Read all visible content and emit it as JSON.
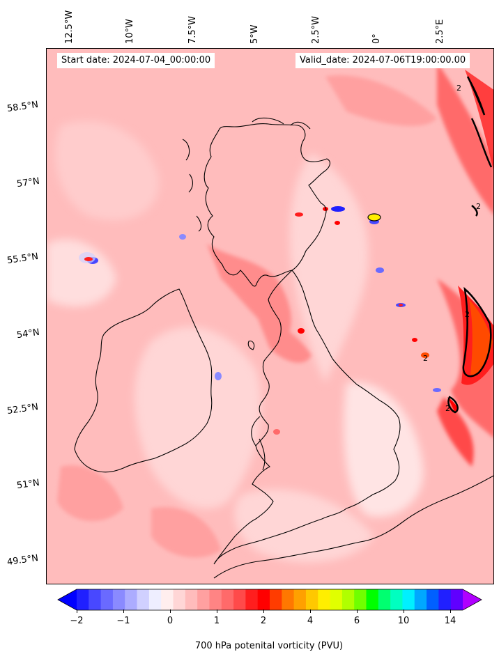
{
  "header": {
    "start_date": "Start date: 2024-07-04_00:00:00",
    "valid_date": "Valid_date: 2024-07-06T19:00:00.00"
  },
  "axes": {
    "lon_labels": [
      "12.5°W",
      "10°W",
      "7.5°W",
      "5°W",
      "2.5°W",
      "0°",
      "2.5°E"
    ],
    "lat_labels": [
      "58.5°N",
      "57°N",
      "55.5°N",
      "54°N",
      "52.5°N",
      "51°N",
      "49.5°N"
    ]
  },
  "colorbar": {
    "title": "700 hPa potenital vorticity (PVU)",
    "tick_labels": [
      "−2",
      "−1",
      "0",
      "1",
      "2",
      "4",
      "6",
      "10",
      "14"
    ],
    "colors": [
      "#0000ff",
      "#2020ff",
      "#4848ff",
      "#6a6aff",
      "#8a8aff",
      "#acacff",
      "#d0d0ff",
      "#eeeeff",
      "#ffeeee",
      "#ffd6d6",
      "#ffbcbc",
      "#ffa0a0",
      "#ff8484",
      "#ff6a6a",
      "#ff4a4a",
      "#ff1e1e",
      "#ff0000",
      "#ff3c00",
      "#ff7800",
      "#ffa000",
      "#ffc800",
      "#ffee00",
      "#e0ff00",
      "#b0ff00",
      "#70ff00",
      "#00ff00",
      "#00ff70",
      "#00ffc0",
      "#00f0ff",
      "#00a8ff",
      "#0060ff",
      "#2020ff",
      "#6000ff",
      "#b000ff"
    ]
  },
  "contour_labels": [
    "2",
    "2",
    "2",
    "2",
    "2"
  ],
  "theme": {
    "background_pink": "#ffd6d6",
    "contour_color": "#000000",
    "coastline_color": "#000000"
  }
}
